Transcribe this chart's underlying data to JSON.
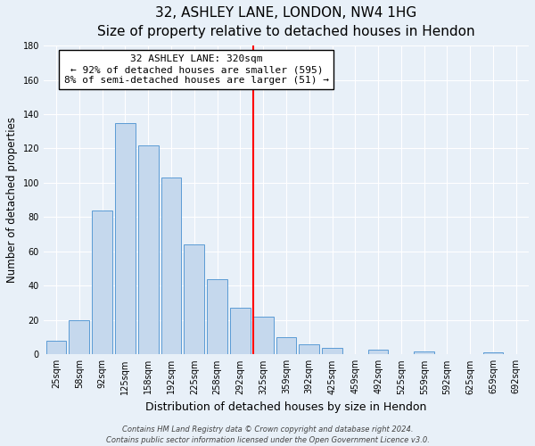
{
  "title": "32, ASHLEY LANE, LONDON, NW4 1HG",
  "subtitle": "Size of property relative to detached houses in Hendon",
  "xlabel": "Distribution of detached houses by size in Hendon",
  "ylabel": "Number of detached properties",
  "bar_labels": [
    "25sqm",
    "58sqm",
    "92sqm",
    "125sqm",
    "158sqm",
    "192sqm",
    "225sqm",
    "258sqm",
    "292sqm",
    "325sqm",
    "359sqm",
    "392sqm",
    "425sqm",
    "459sqm",
    "492sqm",
    "525sqm",
    "559sqm",
    "592sqm",
    "625sqm",
    "659sqm",
    "692sqm"
  ],
  "bar_values": [
    8,
    20,
    84,
    135,
    122,
    103,
    64,
    44,
    27,
    22,
    10,
    6,
    4,
    0,
    3,
    0,
    2,
    0,
    0,
    1,
    0
  ],
  "bar_color": "#c5d8ed",
  "bar_edge_color": "#5b9bd5",
  "ylim": [
    0,
    180
  ],
  "yticks": [
    0,
    20,
    40,
    60,
    80,
    100,
    120,
    140,
    160,
    180
  ],
  "vline_idx": 9,
  "vline_color": "red",
  "annotation_title": "32 ASHLEY LANE: 320sqm",
  "annotation_line1": "← 92% of detached houses are smaller (595)",
  "annotation_line2": "8% of semi-detached houses are larger (51) →",
  "annotation_box_color": "#ffffff",
  "annotation_box_edge": "#000000",
  "footer_line1": "Contains HM Land Registry data © Crown copyright and database right 2024.",
  "footer_line2": "Contains public sector information licensed under the Open Government Licence v3.0.",
  "background_color": "#e8f0f8",
  "plot_background": "#e8f0f8",
  "title_fontsize": 11,
  "subtitle_fontsize": 9.5,
  "ylabel_fontsize": 8.5,
  "xlabel_fontsize": 9,
  "tick_fontsize": 7,
  "footer_fontsize": 6,
  "annot_fontsize": 8
}
